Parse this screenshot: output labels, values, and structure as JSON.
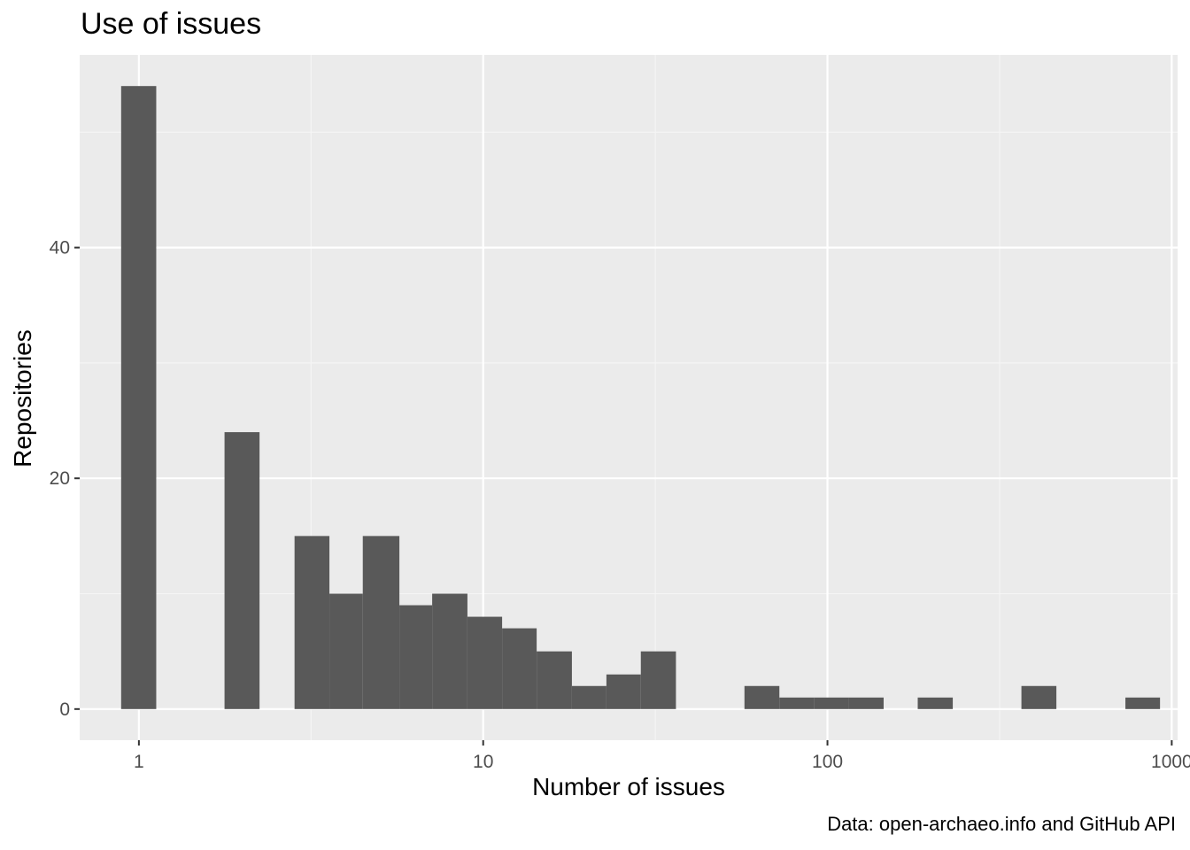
{
  "chart_data": {
    "type": "bar",
    "title": "Use of issues",
    "xlabel": "Number of issues",
    "ylabel": "Repositories",
    "caption": "Data: open-archaeo.info and GitHub API",
    "x_scale": "log10",
    "xlim": [
      0.673,
      1040
    ],
    "ylim": [
      -2.7,
      56.7
    ],
    "x_ticks": [
      1,
      10,
      100,
      1000
    ],
    "x_tick_labels": [
      "1",
      "10",
      "100",
      "1000"
    ],
    "y_ticks": [
      0,
      20,
      40
    ],
    "y_tick_labels": [
      "0",
      "20",
      "40"
    ],
    "grid": true,
    "bins": [
      {
        "x_start": 0.888,
        "x_end": 1.123,
        "count": 54
      },
      {
        "x_start": 1.773,
        "x_end": 2.241,
        "count": 24
      },
      {
        "x_start": 2.832,
        "x_end": 3.576,
        "count": 15
      },
      {
        "x_start": 3.576,
        "x_end": 4.47,
        "count": 10
      },
      {
        "x_start": 4.47,
        "x_end": 5.71,
        "count": 15
      },
      {
        "x_start": 5.71,
        "x_end": 7.11,
        "count": 9
      },
      {
        "x_start": 7.11,
        "x_end": 9.0,
        "count": 10
      },
      {
        "x_start": 9.0,
        "x_end": 11.35,
        "count": 8
      },
      {
        "x_start": 11.35,
        "x_end": 14.3,
        "count": 7
      },
      {
        "x_start": 14.3,
        "x_end": 18.1,
        "count": 5
      },
      {
        "x_start": 18.1,
        "x_end": 22.8,
        "count": 2
      },
      {
        "x_start": 22.8,
        "x_end": 28.7,
        "count": 3
      },
      {
        "x_start": 28.7,
        "x_end": 36.3,
        "count": 5
      },
      {
        "x_start": 57.4,
        "x_end": 72.5,
        "count": 2
      },
      {
        "x_start": 72.5,
        "x_end": 91.3,
        "count": 1
      },
      {
        "x_start": 91.3,
        "x_end": 115.3,
        "count": 1
      },
      {
        "x_start": 115.3,
        "x_end": 145.6,
        "count": 1
      },
      {
        "x_start": 182.9,
        "x_end": 231.2,
        "count": 1
      },
      {
        "x_start": 365.9,
        "x_end": 462.3,
        "count": 2
      },
      {
        "x_start": 733.5,
        "x_end": 924.6,
        "count": 1
      }
    ],
    "colors": {
      "bar": "#595959",
      "panel": "#ebebeb",
      "grid_major": "#ffffff",
      "grid_minor": "#f5f5f5",
      "axis_text": "#4d4d4d"
    }
  }
}
